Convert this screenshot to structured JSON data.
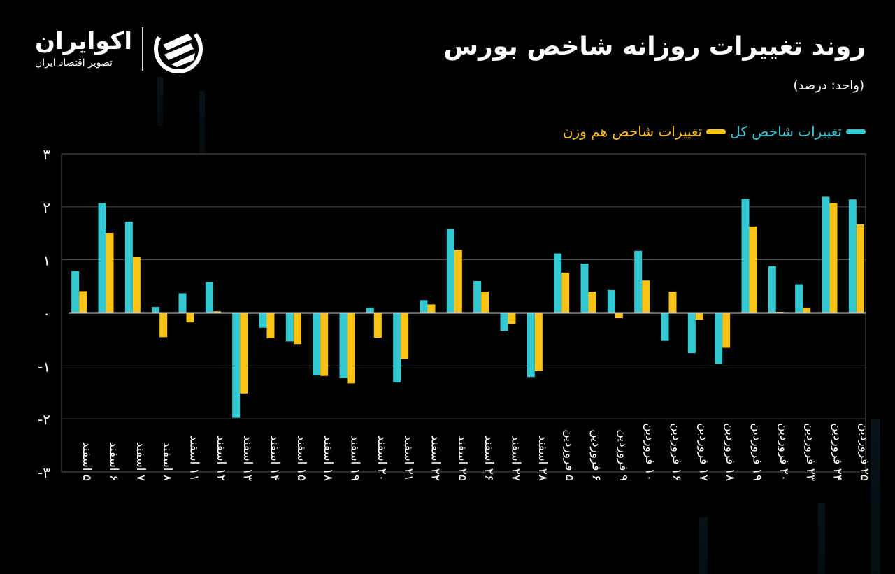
{
  "header": {
    "title": "روند تغییرات روزانه شاخص بورس",
    "unit": "(واحد: درصد)"
  },
  "logo": {
    "name": "اکوایران",
    "tagline": "تصویر اقتصاد ایران"
  },
  "legend": [
    {
      "label": "تغییرات شاخص کل",
      "color": "#33c9d2"
    },
    {
      "label": "تغییرات شاخص هم وزن",
      "color": "#fcc214"
    }
  ],
  "chart_data": {
    "type": "bar",
    "title": "روند تغییرات روزانه شاخص بورس",
    "subtitle": "(واحد: درصد)",
    "xlabel": "",
    "ylabel": "درصد",
    "ylim": [
      -3,
      3
    ],
    "yticks": [
      -3,
      -2,
      -1,
      0,
      1,
      2,
      3
    ],
    "ytick_labels": [
      "-۳",
      "-۲",
      "-۱",
      "۰",
      "۱",
      "۲",
      "۳"
    ],
    "grid": true,
    "legend_position": "top-right",
    "categories": [
      "۵ اسفند",
      "۶ اسفند",
      "۷ اسفند",
      "۸ اسفند",
      "۱۱ اسفند",
      "۱۲ اسفند",
      "۱۳ اسفند",
      "۱۴ اسفند",
      "۱۵ اسفند",
      "۱۸ اسفند",
      "۱۹ اسفند",
      "۲۰ اسفند",
      "۲۱ اسفند",
      "۲۲ اسفند",
      "۲۵ اسفند",
      "۲۶ اسفند",
      "۲۷ اسفند",
      "۲۸ اسفند",
      "۵ فروردین",
      "۶ فروردین",
      "۹ فروردین",
      "۱۰ فروردین",
      "۱۶ فروردین",
      "۱۷ فروردین",
      "۱۸ فروردین",
      "۱۹ فروردین",
      "۲۰ فروردین",
      "۲۳ فروردین",
      "۲۴ فروردین",
      "۲۵ فروردین"
    ],
    "series": [
      {
        "name": "تغییرات شاخص کل",
        "color": "#33c9d2",
        "values": [
          0.79,
          2.07,
          1.72,
          0.11,
          0.37,
          0.58,
          -1.98,
          -0.28,
          -0.54,
          -1.18,
          -1.23,
          0.1,
          -1.31,
          0.24,
          1.58,
          0.6,
          -0.34,
          -1.21,
          1.12,
          0.93,
          0.43,
          1.17,
          -0.53,
          -0.76,
          -0.96,
          2.15,
          0.88,
          0.54,
          2.19,
          2.14
        ]
      },
      {
        "name": "تغییرات شاخص هم وزن",
        "color": "#fcc214",
        "values": [
          0.41,
          1.51,
          1.05,
          -0.46,
          -0.18,
          0.03,
          -1.52,
          -0.48,
          -0.59,
          -1.19,
          -1.33,
          -0.47,
          -0.87,
          0.16,
          1.19,
          0.4,
          -0.21,
          -1.1,
          0.76,
          0.4,
          -0.1,
          0.61,
          0.4,
          -0.13,
          -0.66,
          1.63,
          0.02,
          0.1,
          2.07,
          1.67
        ]
      }
    ]
  }
}
